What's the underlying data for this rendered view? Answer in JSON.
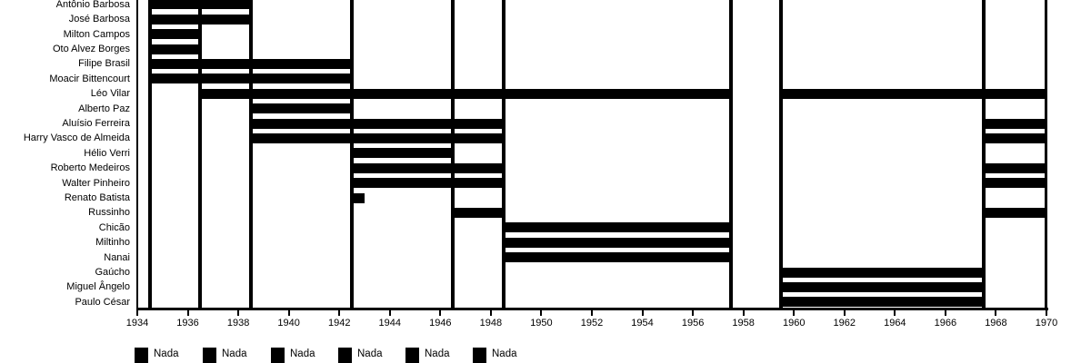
{
  "chart_data": {
    "type": "gantt",
    "title": "",
    "background_color": "#ffffff",
    "bar_color": "#000000",
    "line_color": "#000000",
    "text_color": "#000000",
    "x_axis": {
      "min": 1934,
      "max": 1970,
      "tick_interval": 2,
      "tick_labels": [
        "1934",
        "1936",
        "1938",
        "1940",
        "1942",
        "1944",
        "1946",
        "1948",
        "1950",
        "1952",
        "1954",
        "1956",
        "1958",
        "1960",
        "1962",
        "1964",
        "1966",
        "1968",
        "1970"
      ]
    },
    "period_boundaries": [
      1934.5,
      1936.5,
      1938.5,
      1942.5,
      1946.5,
      1948.5,
      1957.5,
      1959.5,
      1967.5
    ],
    "rows": [
      {
        "label": "Antônio Barbosa",
        "spans": [
          [
            1934.5,
            1938.5
          ]
        ]
      },
      {
        "label": "José Barbosa",
        "spans": [
          [
            1934.5,
            1938.5
          ]
        ]
      },
      {
        "label": "Milton Campos",
        "spans": [
          [
            1934.5,
            1936.5
          ]
        ]
      },
      {
        "label": "Oto Alvez Borges",
        "spans": [
          [
            1934.5,
            1936.5
          ]
        ]
      },
      {
        "label": "Filipe Brasil",
        "spans": [
          [
            1934.5,
            1942.5
          ]
        ]
      },
      {
        "label": "Moacir Bittencourt",
        "spans": [
          [
            1934.5,
            1942.5
          ]
        ]
      },
      {
        "label": "Léo Vilar",
        "spans": [
          [
            1936.5,
            1957.5
          ],
          [
            1959.5,
            1970
          ]
        ]
      },
      {
        "label": "Alberto Paz",
        "spans": [
          [
            1938.5,
            1942.5
          ]
        ]
      },
      {
        "label": "Aluísio Ferreira",
        "spans": [
          [
            1938.5,
            1948.5
          ],
          [
            1967.5,
            1970
          ]
        ]
      },
      {
        "label": "Harry Vasco de Almeida",
        "spans": [
          [
            1938.5,
            1948.5
          ],
          [
            1967.5,
            1970
          ]
        ]
      },
      {
        "label": "Hélio Verri",
        "spans": [
          [
            1942.5,
            1946.5
          ]
        ]
      },
      {
        "label": "Roberto Medeiros",
        "spans": [
          [
            1942.5,
            1948.5
          ],
          [
            1967.5,
            1970
          ]
        ]
      },
      {
        "label": "Walter Pinheiro",
        "spans": [
          [
            1942.5,
            1948.5
          ],
          [
            1967.5,
            1970
          ]
        ]
      },
      {
        "label": "Renato Batista",
        "spans": [
          [
            1942.5,
            1943
          ]
        ]
      },
      {
        "label": "Russinho",
        "spans": [
          [
            1946.5,
            1948.5
          ],
          [
            1967.5,
            1970
          ]
        ]
      },
      {
        "label": "Chicão",
        "spans": [
          [
            1948.5,
            1957.5
          ]
        ]
      },
      {
        "label": "Miltinho",
        "spans": [
          [
            1948.5,
            1957.5
          ]
        ]
      },
      {
        "label": "Nanai",
        "spans": [
          [
            1948.5,
            1957.5
          ]
        ]
      },
      {
        "label": "Gaúcho",
        "spans": [
          [
            1959.5,
            1967.5
          ]
        ]
      },
      {
        "label": "Miguel Ângelo",
        "spans": [
          [
            1959.5,
            1967.5
          ]
        ]
      },
      {
        "label": "Paulo César",
        "spans": [
          [
            1959.5,
            1967.5
          ]
        ]
      }
    ],
    "legend": {
      "items": [
        {
          "label": "Nada"
        },
        {
          "label": "Nada"
        },
        {
          "label": "Nada"
        },
        {
          "label": "Nada"
        },
        {
          "label": "Nada"
        },
        {
          "label": "Nada"
        }
      ],
      "second_row_cut_off": true
    }
  }
}
